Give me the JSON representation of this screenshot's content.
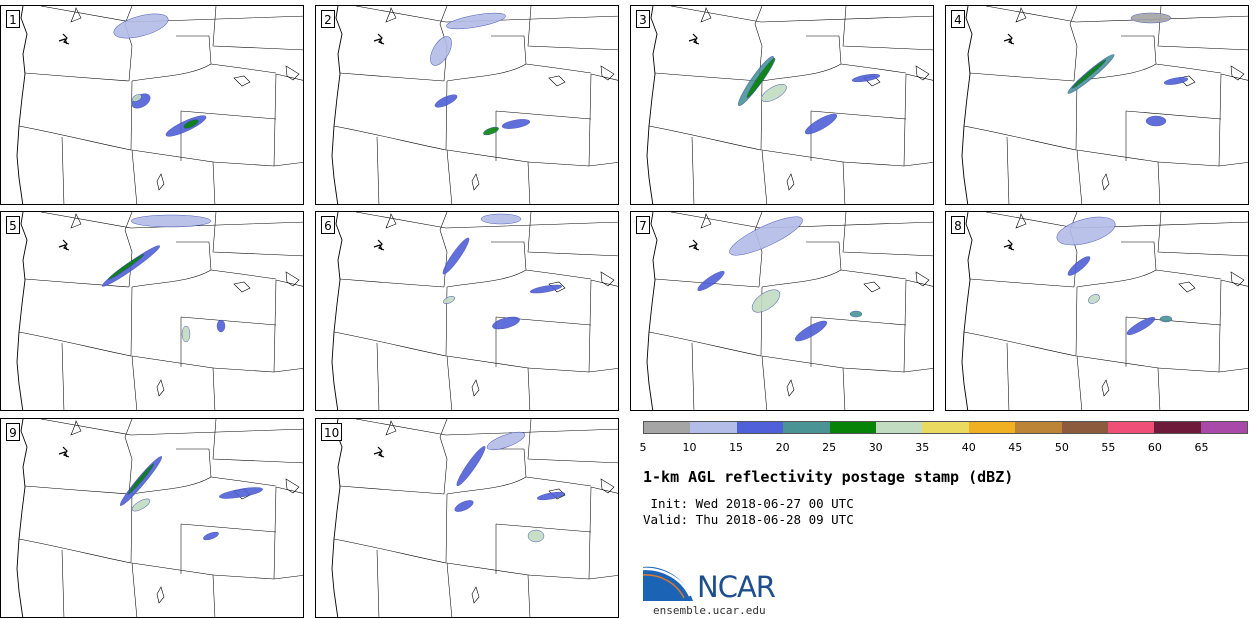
{
  "panels": [
    {
      "label": "1"
    },
    {
      "label": "2"
    },
    {
      "label": "3"
    },
    {
      "label": "4"
    },
    {
      "label": "5"
    },
    {
      "label": "6"
    },
    {
      "label": "7"
    },
    {
      "label": "8"
    },
    {
      "label": "9"
    },
    {
      "label": "10"
    }
  ],
  "colorbar": {
    "colors": [
      "#a5a5a5",
      "#b4bce8",
      "#5060d8",
      "#4a9496",
      "#078307",
      "#c1dcc0",
      "#eadb60",
      "#efb021",
      "#bc8436",
      "#8c5a3c",
      "#f05078",
      "#6e1a3a",
      "#aa4aa8"
    ],
    "tick_labels": [
      "5",
      "10",
      "15",
      "20",
      "25",
      "30",
      "35",
      "40",
      "45",
      "50",
      "55",
      "60",
      "65"
    ]
  },
  "title": "1-km AGL reflectivity postage stamp (dBZ)",
  "init": " Init: Wed 2018-06-27 00 UTC",
  "valid": "Valid: Thu 2018-06-28 09 UTC",
  "logo": {
    "text": "NCAR",
    "url": "ensemble.ucar.edu"
  }
}
